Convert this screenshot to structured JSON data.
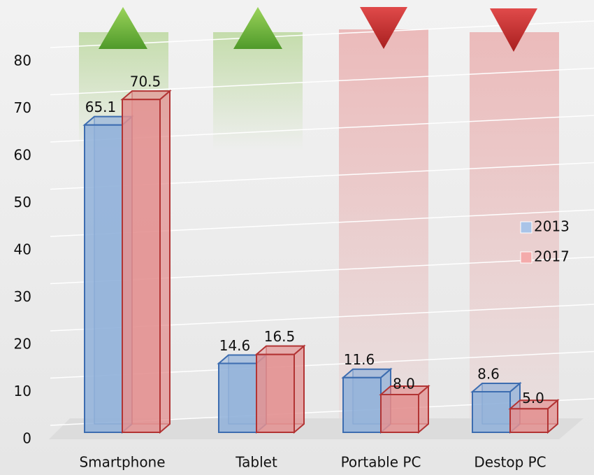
{
  "chart_data": {
    "type": "bar3d",
    "categories": [
      "Smartphone",
      "Tablet",
      "Portable PC",
      "Destop PC"
    ],
    "series": [
      {
        "name": "2013",
        "color": "#8fb0d9",
        "values": [
          65.1,
          14.6,
          11.6,
          8.6
        ]
      },
      {
        "name": "2017",
        "color": "#e39090",
        "values": [
          70.5,
          16.5,
          8.0,
          5.0
        ],
        "value_labels": [
          "70.5",
          "16.5",
          "8.0",
          "5.0"
        ]
      }
    ],
    "ylim": [
      0,
      80
    ],
    "yticks": [
      0,
      10,
      20,
      30,
      40,
      50,
      60,
      70,
      80
    ],
    "grid": true,
    "legend": "right"
  }
}
